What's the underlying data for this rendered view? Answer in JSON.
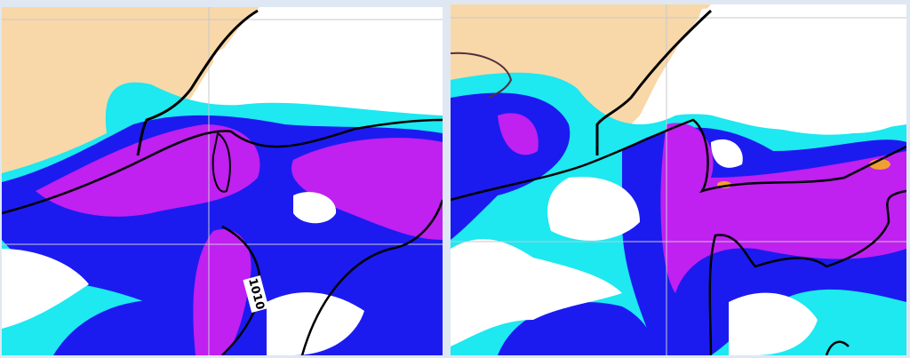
{
  "panels": [
    {
      "contour_label": "1010"
    },
    {}
  ]
}
